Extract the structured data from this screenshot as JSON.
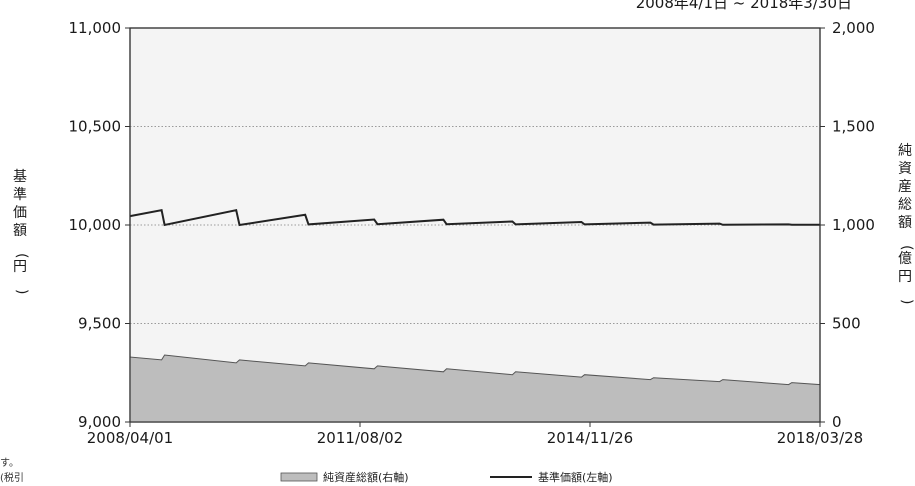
{
  "header": {
    "period": "2008年4/1日 ~ 2018年3/30日"
  },
  "notes": [
    "す。",
    "(税引"
  ],
  "chart_data": {
    "type": "area+line",
    "x_ticks": [
      "2008/04/01",
      "2011/08/02",
      "2014/11/26",
      "2018/03/28"
    ],
    "x_range": [
      "2008/04/01",
      "2018/03/30"
    ],
    "y_left": {
      "label": "基準価額(円)",
      "range": [
        9000,
        11000
      ],
      "ticks": [
        "11,000",
        "10,500",
        "10,000",
        "9,500",
        "9,000"
      ]
    },
    "y_right": {
      "label": "純資産総額(億円)",
      "range": [
        0,
        2000
      ],
      "ticks": [
        "2,000",
        "1,500",
        "1,000",
        "500",
        "0"
      ]
    },
    "grid": "horizontal dotted",
    "legend": {
      "placement": "bottom-center",
      "items": [
        {
          "label": "純資産総額(右軸)",
          "kind": "area",
          "color": "#bdbdbd"
        },
        {
          "label": "基準価額(左軸)",
          "kind": "line",
          "color": "#222222"
        }
      ]
    },
    "colors": {
      "plot_bg": "#f4f4f4",
      "area_fill": "#bdbdbd",
      "line": "#222222",
      "grid": "#9a9a9a"
    },
    "series": [
      {
        "name": "基準価額(左軸)",
        "axis": "left",
        "kind": "line",
        "points": [
          [
            "2008/04/01",
            10045
          ],
          [
            "2008/09/15",
            10075
          ],
          [
            "2008/10/01",
            10000
          ],
          [
            "2009/10/15",
            10075
          ],
          [
            "2009/11/01",
            10000
          ],
          [
            "2010/10/15",
            10052
          ],
          [
            "2010/11/01",
            10003
          ],
          [
            "2011/10/15",
            10028
          ],
          [
            "2011/11/01",
            10004
          ],
          [
            "2012/10/15",
            10027
          ],
          [
            "2012/11/01",
            10004
          ],
          [
            "2013/10/15",
            10018
          ],
          [
            "2013/11/01",
            10003
          ],
          [
            "2014/10/15",
            10015
          ],
          [
            "2014/11/01",
            10003
          ],
          [
            "2015/10/15",
            10012
          ],
          [
            "2015/11/01",
            10002
          ],
          [
            "2016/10/15",
            10007
          ],
          [
            "2016/11/01",
            10001
          ],
          [
            "2017/10/15",
            10003
          ],
          [
            "2017/11/01",
            10001
          ],
          [
            "2018/03/30",
            10001
          ]
        ]
      },
      {
        "name": "純資産総額(右軸)",
        "axis": "right",
        "kind": "area",
        "points": [
          [
            "2008/04/01",
            330
          ],
          [
            "2008/09/15",
            315
          ],
          [
            "2008/10/01",
            340
          ],
          [
            "2009/10/15",
            300
          ],
          [
            "2009/11/01",
            315
          ],
          [
            "2010/10/15",
            285
          ],
          [
            "2010/11/01",
            300
          ],
          [
            "2011/10/15",
            270
          ],
          [
            "2011/11/01",
            285
          ],
          [
            "2012/10/15",
            255
          ],
          [
            "2012/11/01",
            270
          ],
          [
            "2013/10/15",
            240
          ],
          [
            "2013/11/01",
            255
          ],
          [
            "2014/10/15",
            228
          ],
          [
            "2014/11/01",
            240
          ],
          [
            "2015/10/15",
            215
          ],
          [
            "2015/11/01",
            225
          ],
          [
            "2016/10/15",
            205
          ],
          [
            "2016/11/01",
            215
          ],
          [
            "2017/10/15",
            190
          ],
          [
            "2017/11/01",
            200
          ],
          [
            "2018/03/30",
            190
          ]
        ]
      }
    ]
  }
}
